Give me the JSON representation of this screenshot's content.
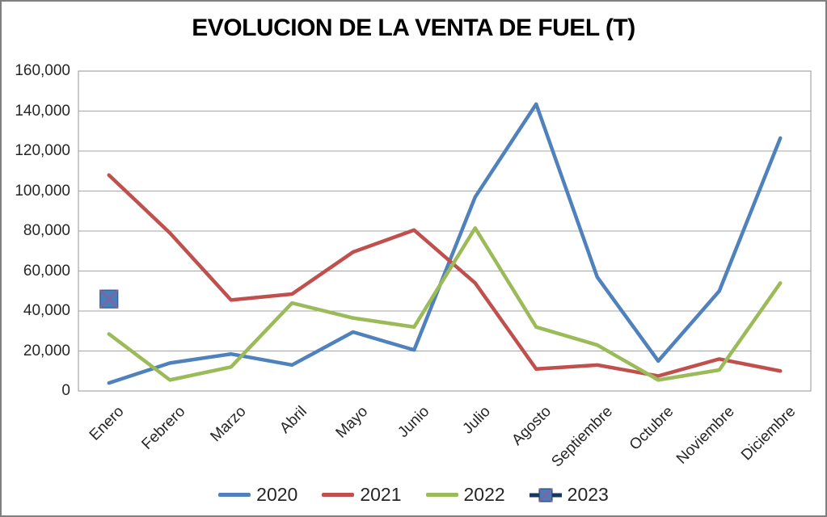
{
  "colors": {
    "background": "#FFFFFF",
    "frame_border": "#7F7F7F",
    "plot_border": "#A6A6A6",
    "gridline": "#A6A6A6",
    "axis_text": "#262626",
    "title_text": "#000000"
  },
  "chart_data": {
    "type": "line",
    "title": "EVOLUCION DE LA VENTA DE FUEL (T)",
    "categories": [
      "Enero",
      "Febrero",
      "Marzo",
      "Abril",
      "Mayo",
      "Junio",
      "Julio",
      "Agosto",
      "Septiembre",
      "Octubre",
      "Noviembre",
      "Diciembre"
    ],
    "series": [
      {
        "name": "2020",
        "color": "#4F81BD",
        "style": "line",
        "values": [
          4000,
          14000,
          18500,
          13000,
          29500,
          20500,
          97000,
          143500,
          57000,
          15000,
          50000,
          126500
        ]
      },
      {
        "name": "2021",
        "color": "#C0504D",
        "style": "line",
        "values": [
          108000,
          79000,
          45500,
          48500,
          69500,
          80500,
          54000,
          11000,
          13000,
          7500,
          16000,
          10000
        ]
      },
      {
        "name": "2022",
        "color": "#9BBB59",
        "style": "line",
        "values": [
          28500,
          5500,
          12000,
          44000,
          36500,
          32000,
          81500,
          32000,
          23000,
          5500,
          10500,
          54000
        ]
      },
      {
        "name": "2023",
        "color": "#17375E",
        "style": "marker-only",
        "marker": {
          "shape": "x-square",
          "fill": "#4A7EBB",
          "cross": "#8064A2",
          "border": "#2E5A94"
        },
        "values": [
          46000,
          null,
          null,
          null,
          null,
          null,
          null,
          null,
          null,
          null,
          null,
          null
        ]
      }
    ],
    "y_axis": {
      "min": 0,
      "max": 160000,
      "step": 20000,
      "tick_labels": [
        "0",
        "20,000",
        "40,000",
        "60,000",
        "80,000",
        "100,000",
        "120,000",
        "140,000",
        "160,000"
      ]
    },
    "x_axis": {
      "label_rotation_deg": 45
    },
    "grid": true,
    "legend_position": "bottom"
  }
}
